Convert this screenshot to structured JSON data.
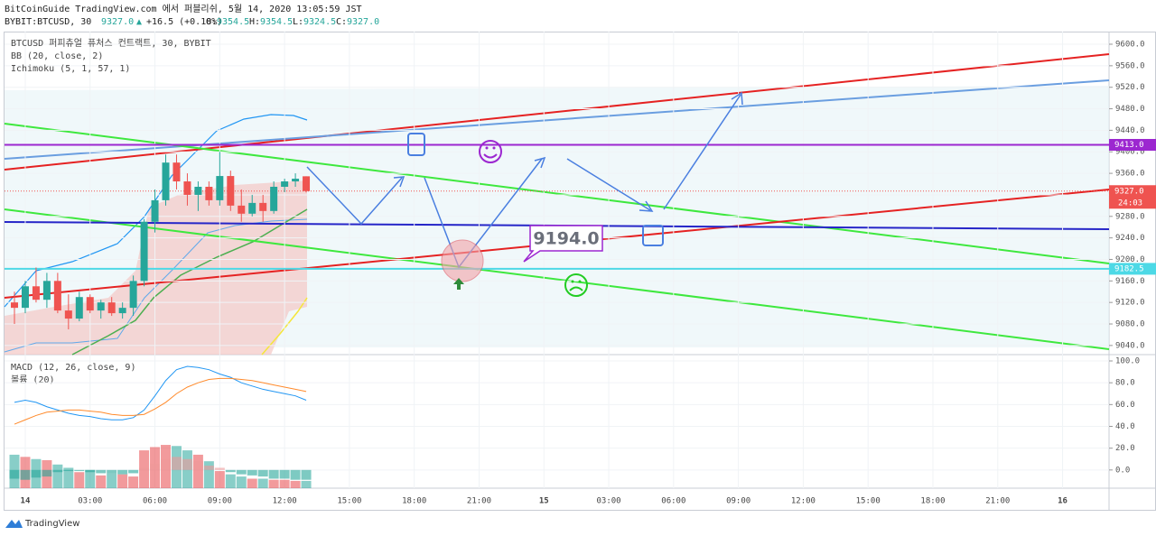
{
  "header": {
    "published": "BitCoinGuide TradingView.com 에서 퍼블리쉬, 5월 14, 2020 13:05:59 JST",
    "symbol": "BYBIT:BTCUSD, 30",
    "price": "9327.0",
    "arrow": "▲",
    "change": "+16.5 (+0.18%)",
    "o_label": "O:",
    "open": "9354.5",
    "h_label": "H:",
    "high": "9354.5",
    "l_label": "L:",
    "low": "9324.5",
    "c_label": "C:",
    "close": "9327.0"
  },
  "legend": [
    "BTCUSD 퍼피츄얼 퓨처스 컨트랙트, 30, BYBIT",
    "BB (20, close, 2)",
    "Ichimoku (5, 1, 57, 1)"
  ],
  "lower_legend": [
    "MACD (12, 26, close, 9)",
    "볼륨 (20)"
  ],
  "callout": "9194.0",
  "footer": "TradingView",
  "chart_data": [
    {
      "type": "candlestick",
      "x": [
        -0.5,
        0,
        0.5,
        1,
        1.5,
        2,
        2.5,
        3,
        3.5,
        4,
        4.5,
        5,
        5.5,
        6,
        6.5,
        7,
        7.5,
        8,
        8.5,
        9,
        9.5,
        10,
        10.5,
        11,
        11.5,
        12,
        12.5,
        13
      ],
      "ohlc": [
        [
          9120,
          9140,
          9080,
          9110
        ],
        [
          9110,
          9160,
          9100,
          9150
        ],
        [
          9150,
          9185,
          9120,
          9125
        ],
        [
          9125,
          9175,
          9110,
          9160
        ],
        [
          9160,
          9175,
          9100,
          9105
        ],
        [
          9105,
          9135,
          9070,
          9090
        ],
        [
          9090,
          9140,
          9085,
          9130
        ],
        [
          9130,
          9135,
          9100,
          9105
        ],
        [
          9105,
          9125,
          9090,
          9120
        ],
        [
          9120,
          9130,
          9095,
          9100
        ],
        [
          9100,
          9120,
          9090,
          9110
        ],
        [
          9110,
          9170,
          9095,
          9160
        ],
        [
          9160,
          9275,
          9150,
          9270
        ],
        [
          9270,
          9330,
          9250,
          9310
        ],
        [
          9310,
          9395,
          9300,
          9380
        ],
        [
          9380,
          9395,
          9330,
          9345
        ],
        [
          9345,
          9360,
          9300,
          9320
        ],
        [
          9320,
          9345,
          9290,
          9335
        ],
        [
          9335,
          9345,
          9300,
          9310
        ],
        [
          9310,
          9400,
          9300,
          9355
        ],
        [
          9355,
          9365,
          9290,
          9300
        ],
        [
          9300,
          9330,
          9270,
          9285
        ],
        [
          9285,
          9320,
          9280,
          9305
        ],
        [
          9305,
          9320,
          9270,
          9290
        ],
        [
          9290,
          9345,
          9285,
          9335
        ],
        [
          9335,
          9350,
          9325,
          9345
        ],
        [
          9345,
          9360,
          9335,
          9350
        ],
        [
          9354.5,
          9354.5,
          9324.5,
          9327
        ]
      ],
      "up_color": "#26a69a",
      "down_color": "#ef5350",
      "price_lines": [
        {
          "value": 9413,
          "label": "9413.0",
          "color": "#9c27d0"
        },
        {
          "value": 9327,
          "label": "9327.0",
          "color": "#ef5350",
          "countdown": "24:03"
        },
        {
          "value": 9182.5,
          "label": "9182.5",
          "color": "#4dd9e6"
        }
      ],
      "xlim": [
        -0.96,
        50.15
      ],
      "xticks": [
        {
          "value": 0,
          "label": "14"
        },
        {
          "value": 3,
          "label": "03:00"
        },
        {
          "value": 6,
          "label": "06:00"
        },
        {
          "value": 9,
          "label": "09:00"
        },
        {
          "value": 12,
          "label": "12:00"
        },
        {
          "value": 15,
          "label": "15:00"
        },
        {
          "value": 18,
          "label": "18:00"
        },
        {
          "value": 21,
          "label": "21:00"
        },
        {
          "value": 24,
          "label": "15"
        },
        {
          "value": 27,
          "label": "03:00"
        },
        {
          "value": 30,
          "label": "06:00"
        },
        {
          "value": 33,
          "label": "09:00"
        },
        {
          "value": 36,
          "label": "12:00"
        },
        {
          "value": 39,
          "label": "15:00"
        },
        {
          "value": 42,
          "label": "18:00"
        },
        {
          "value": 45,
          "label": "21:00"
        },
        {
          "value": 48,
          "label": "16"
        }
      ],
      "ylim": [
        9023,
        9623.5
      ],
      "yticks": [
        {
          "value": 9600,
          "label": "9600.0"
        },
        {
          "value": 9560,
          "label": "9560.0"
        },
        {
          "value": 9520,
          "label": "9520.0"
        },
        {
          "value": 9480,
          "label": "9480.0"
        },
        {
          "value": 9440,
          "label": "9440.0"
        },
        {
          "value": 9400,
          "label": "9400.0"
        },
        {
          "value": 9360,
          "label": "9360.0"
        },
        {
          "value": 9320,
          "label": "9320.0"
        },
        {
          "value": 9280,
          "label": "9280.0"
        },
        {
          "value": 9240,
          "label": "9240.0"
        },
        {
          "value": 9200,
          "label": "9200.0"
        },
        {
          "value": 9160,
          "label": "9160.0"
        },
        {
          "value": 9120,
          "label": "9120.0"
        },
        {
          "value": 9080,
          "label": "9080.0"
        },
        {
          "value": 9040,
          "label": "9040.0"
        }
      ]
    },
    {
      "type": "macd",
      "x": [
        -0.5,
        0,
        0.5,
        1,
        1.5,
        2,
        2.5,
        3,
        3.5,
        4,
        4.5,
        5,
        5.5,
        6,
        6.5,
        7,
        7.5,
        8,
        8.5,
        9,
        9.5,
        10,
        10.5,
        11,
        11.5,
        12,
        12.5,
        13
      ],
      "series": [
        {
          "name": "MACD",
          "color": "#2196f3",
          "values": [
            62,
            64,
            62,
            58,
            55,
            52,
            50,
            49,
            47,
            46,
            46,
            48,
            55,
            68,
            82,
            92,
            95,
            94,
            92,
            88,
            85,
            80,
            77,
            74,
            72,
            70,
            68,
            64
          ]
        },
        {
          "name": "Signal",
          "color": "#ff8a2b",
          "values": [
            42,
            46,
            50,
            53,
            54,
            55,
            55,
            54,
            53,
            51,
            50,
            50,
            51,
            56,
            62,
            70,
            76,
            80,
            83,
            84,
            84,
            83,
            82,
            80,
            78,
            76,
            74,
            72
          ]
        }
      ],
      "histogram": {
        "color": "#26a69a",
        "values": [
          -8,
          -9,
          -7,
          -6,
          -2,
          -1,
          -1,
          -2,
          -3,
          -3,
          -4,
          -3,
          2,
          6,
          10,
          12,
          10,
          8,
          4,
          2,
          -2,
          -4,
          -5,
          -6,
          -8,
          -8,
          -9,
          -9
        ]
      },
      "volume": {
        "values": [
          14,
          12,
          10,
          9,
          5,
          2,
          -2,
          0,
          -5,
          -3,
          -4,
          -6,
          18,
          21,
          23,
          22,
          18,
          14,
          8,
          -1,
          -4,
          -6,
          -8,
          -8,
          -9,
          -9,
          -10,
          -10
        ]
      },
      "ylim": [
        -16.7,
        105.8
      ],
      "yticks": [
        {
          "value": 100,
          "label": "100.0"
        },
        {
          "value": 80,
          "label": "80.0"
        },
        {
          "value": 60,
          "label": "60.0"
        },
        {
          "value": 40,
          "label": "40.0"
        },
        {
          "value": 20,
          "label": "20.0"
        },
        {
          "value": 0,
          "label": "0.0"
        }
      ]
    }
  ]
}
